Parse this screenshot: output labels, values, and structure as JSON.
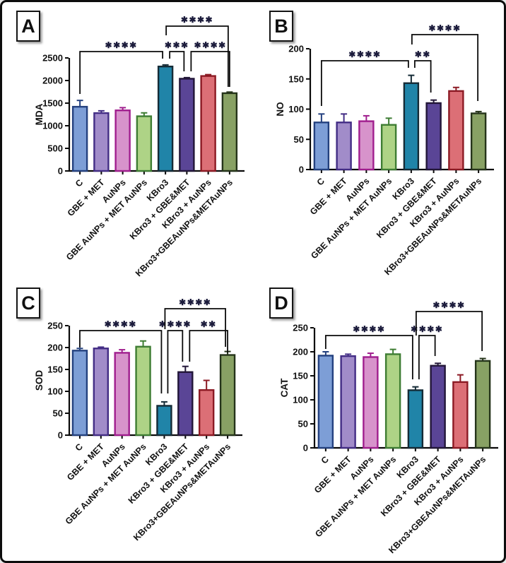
{
  "style": {
    "axis_color": "#0a0a0a",
    "sig_color": "#1c1c3c",
    "bar_fills": [
      "#7d9ed6",
      "#a18cc9",
      "#d793cb",
      "#aed386",
      "#2084a8",
      "#5a4596",
      "#dc6f76",
      "#88a164"
    ],
    "bar_borders": [
      "#24417f",
      "#432d85",
      "#a01e8e",
      "#3e7d33",
      "#152b36",
      "#221638",
      "#8c1a24",
      "#25341a"
    ]
  },
  "chart_data": [
    {
      "type": "bar",
      "panel_label": "A",
      "ylabel": "MDA",
      "categories": [
        "C",
        "GBE + MET",
        "AuNPs",
        "GBE AuNPs + MET AuNPs",
        "KBro3",
        "KBro3 + GBE&MET",
        "KBro3 + AuNPs",
        "KBro3+GBEAuNPs&METAuNPs"
      ],
      "values": [
        1420,
        1280,
        1340,
        1210,
        2310,
        2040,
        2100,
        1720
      ],
      "errors": [
        140,
        50,
        60,
        75,
        35,
        25,
        30,
        25
      ],
      "ylim": [
        0,
        2500
      ],
      "ytick_step": 500,
      "grid": false,
      "plot": {
        "left": 95,
        "right": 337,
        "bottom": 239,
        "height": 160
      },
      "significance": [
        {
          "bars": [
            0,
            4
          ],
          "label": "****",
          "y": 70,
          "drop_a": 130,
          "drop_b": 80,
          "dx": [
            0,
            -4
          ]
        },
        {
          "bars": [
            4,
            5
          ],
          "label": "***",
          "y": 70,
          "drop_a": 80,
          "drop_b": 98,
          "dx": [
            6,
            -4
          ]
        },
        {
          "bars": [
            5,
            7
          ],
          "label": "****",
          "y": 70,
          "drop_a": 98,
          "drop_b": 120,
          "dx": [
            6,
            0
          ]
        },
        {
          "bars": [
            4,
            7
          ],
          "label": "****",
          "y": 34,
          "drop_a": 47,
          "drop_b": 120,
          "dx": [
            1,
            -2
          ]
        }
      ]
    },
    {
      "type": "bar",
      "panel_label": "B",
      "ylabel": "NO",
      "categories": [
        "C",
        "GBE + MET",
        "AuNPs",
        "GBE AuNPs + MET AuNPs",
        "KBro3",
        "KBro3 + GBE&MET",
        "KBro3 + AuNPs",
        "KBro3+GBEAuNPs&METAuNPs"
      ],
      "values": [
        78,
        78,
        80,
        74,
        143,
        110,
        130,
        93
      ],
      "errors": [
        14,
        14,
        9,
        11,
        13,
        5,
        6,
        3
      ],
      "ylim": [
        0,
        200
      ],
      "ytick_step": 50,
      "grid": false,
      "plot": {
        "left": 78,
        "right": 332,
        "bottom": 237,
        "height": 171
      },
      "significance": [
        {
          "bars": [
            0,
            4
          ],
          "label": "****",
          "y": 83,
          "drop_a": 147,
          "drop_b": 93,
          "dx": [
            0,
            -4
          ]
        },
        {
          "bars": [
            4,
            5
          ],
          "label": "**",
          "y": 83,
          "drop_a": 93,
          "drop_b": 128,
          "dx": [
            5,
            -4
          ]
        },
        {
          "bars": [
            4,
            7
          ],
          "label": "****",
          "y": 46,
          "drop_a": 60,
          "drop_b": 140,
          "dx": [
            1,
            -1
          ]
        }
      ]
    },
    {
      "type": "bar",
      "panel_label": "C",
      "ylabel": "SOD",
      "categories": [
        "C",
        "GBE + MET",
        "AuNPs",
        "GBE AuNPs + MET AuNPs",
        "KBro3",
        "KBro3 + GBE&MET",
        "KBro3 + AuNPs",
        "KBro3+GBEAuNPs&METAuNPs"
      ],
      "values": [
        193,
        198,
        188,
        202,
        67,
        144,
        103,
        183
      ],
      "errors": [
        5,
        3,
        7,
        13,
        9,
        13,
        22,
        8
      ],
      "ylim": [
        0,
        250
      ],
      "ytick_step": 50,
      "grid": false,
      "plot": {
        "left": 95,
        "right": 334,
        "bottom": 214,
        "height": 155
      },
      "significance": [
        {
          "bars": [
            0,
            4
          ],
          "label": "****",
          "y": 66,
          "drop_a": 90,
          "drop_b": 155,
          "dx": [
            0,
            -4
          ]
        },
        {
          "bars": [
            4,
            5
          ],
          "label": "****",
          "y": 66,
          "drop_a": 155,
          "drop_b": 110,
          "dx": [
            5,
            -4
          ]
        },
        {
          "bars": [
            5,
            7
          ],
          "label": "**",
          "y": 66,
          "drop_a": 110,
          "drop_b": 97,
          "dx": [
            6,
            0
          ]
        },
        {
          "bars": [
            4,
            7
          ],
          "label": "****",
          "y": 35,
          "drop_a": 64,
          "drop_b": 89,
          "dx": [
            1,
            -3
          ]
        }
      ]
    },
    {
      "type": "bar",
      "panel_label": "D",
      "ylabel": "CAT",
      "categories": [
        "C",
        "GBE + MET",
        "AuNPs",
        "GBE AuNPs + MET AuNPs",
        "KBro3",
        "KBro3 + GBE&MET",
        "KBro3 + AuNPs",
        "KBro3+GBEAuNPs&METAuNPs"
      ],
      "values": [
        192,
        191,
        189,
        195,
        120,
        171,
        137,
        181
      ],
      "errors": [
        8,
        4,
        8,
        10,
        7,
        5,
        15,
        5
      ],
      "ylim": [
        0,
        250
      ],
      "ytick_step": 50,
      "grid": false,
      "plot": {
        "left": 84,
        "right": 338,
        "bottom": 232,
        "height": 170
      },
      "significance": [
        {
          "bars": [
            0,
            4
          ],
          "label": "****",
          "y": 73,
          "drop_a": 92,
          "drop_b": 135,
          "dx": [
            0,
            -4
          ]
        },
        {
          "bars": [
            4,
            5
          ],
          "label": "****",
          "y": 73,
          "drop_a": 135,
          "drop_b": 102,
          "dx": [
            5,
            -4
          ]
        },
        {
          "bars": [
            4,
            7
          ],
          "label": "****",
          "y": 39,
          "drop_a": 73,
          "drop_b": 95,
          "dx": [
            1,
            -1
          ]
        }
      ]
    }
  ]
}
